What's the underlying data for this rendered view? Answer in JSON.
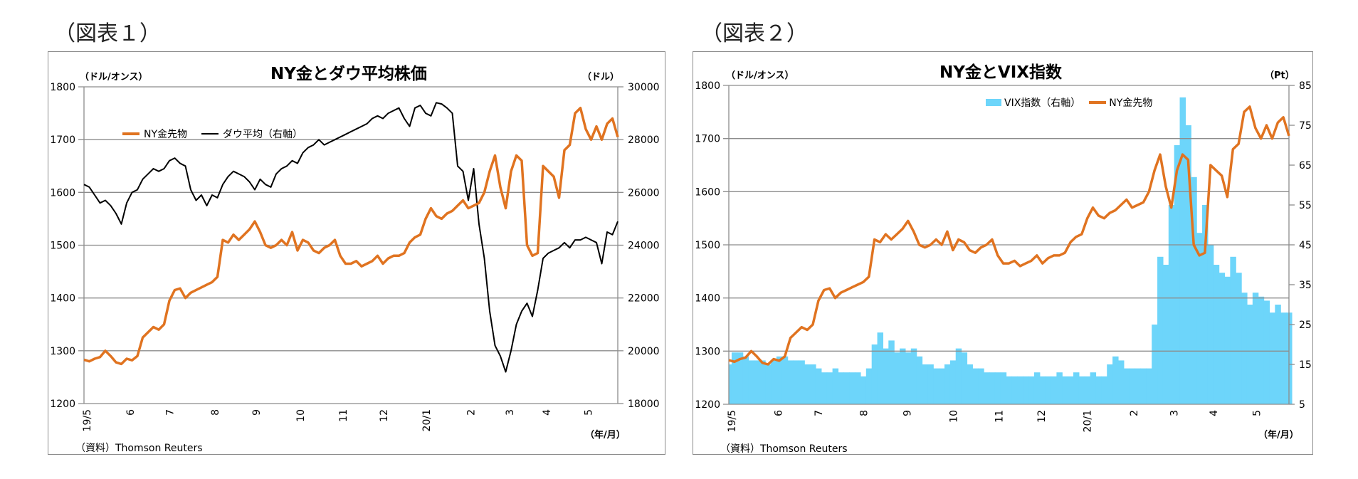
{
  "figures": [
    {
      "label": "（図表１）",
      "title": "NY金とダウ平均株価",
      "left_unit": "（ドル/オンス）",
      "right_unit": "（ドル）",
      "x_unit": "（年/月）",
      "source": "（資料）Thomson Reuters",
      "legend": [
        "NY金先物",
        "ダウ平均（右軸）"
      ]
    },
    {
      "label": "（図表２）",
      "title": "NY金とVIX指数",
      "left_unit": "（ドル/オンス）",
      "right_unit": "（Pt）",
      "x_unit": "（年/月）",
      "source": "（資料）Thomson Reuters",
      "legend": [
        "VIX指数（右軸）",
        "NY金先物"
      ]
    }
  ],
  "colors": {
    "gold": "#E07320",
    "dow": "#000000",
    "vix": "#6DD5FA",
    "grid": "#8c8c8c"
  },
  "chart_data": [
    {
      "type": "line",
      "title": "NY金とダウ平均株価",
      "xlabel": "（年/月）",
      "ylabel": "（ドル/オンス）",
      "y2label": "（ドル）",
      "categories": [
        "19/5",
        "6",
        "7",
        "8",
        "9",
        "10",
        "11",
        "12",
        "20/1",
        "2",
        "3",
        "4",
        "5"
      ],
      "category_pos": [
        0,
        0.081,
        0.155,
        0.24,
        0.317,
        0.4,
        0.48,
        0.556,
        0.636,
        0.719,
        0.792,
        0.861,
        0.939
      ],
      "ylim": [
        1200,
        1800
      ],
      "yticks": [
        1200,
        1300,
        1400,
        1500,
        1600,
        1700,
        1800
      ],
      "y2lim": [
        18000,
        30000
      ],
      "y2ticks": [
        18000,
        20000,
        22000,
        24000,
        26000,
        28000,
        30000
      ],
      "grid": true,
      "legend_position": "upper-left",
      "series": [
        {
          "name": "NY金先物",
          "axis": "left",
          "color": "#E07320",
          "x": [
            0,
            0.01,
            0.02,
            0.03,
            0.04,
            0.05,
            0.06,
            0.07,
            0.08,
            0.09,
            0.1,
            0.11,
            0.12,
            0.13,
            0.14,
            0.15,
            0.16,
            0.17,
            0.18,
            0.19,
            0.2,
            0.21,
            0.22,
            0.23,
            0.24,
            0.25,
            0.26,
            0.27,
            0.28,
            0.29,
            0.3,
            0.31,
            0.32,
            0.33,
            0.34,
            0.35,
            0.36,
            0.37,
            0.38,
            0.39,
            0.4,
            0.41,
            0.42,
            0.43,
            0.44,
            0.45,
            0.46,
            0.47,
            0.48,
            0.49,
            0.5,
            0.51,
            0.52,
            0.53,
            0.54,
            0.55,
            0.56,
            0.57,
            0.58,
            0.59,
            0.6,
            0.61,
            0.62,
            0.63,
            0.64,
            0.65,
            0.66,
            0.67,
            0.68,
            0.69,
            0.7,
            0.71,
            0.72,
            0.73,
            0.74,
            0.75,
            0.76,
            0.77,
            0.78,
            0.79,
            0.8,
            0.81,
            0.82,
            0.83,
            0.84,
            0.85,
            0.86,
            0.87,
            0.88,
            0.89,
            0.9,
            0.91,
            0.92,
            0.93,
            0.94,
            0.95,
            0.96,
            0.97,
            0.98,
            0.99,
            1
          ],
          "values": [
            1283,
            1280,
            1285,
            1288,
            1300,
            1290,
            1278,
            1275,
            1285,
            1282,
            1290,
            1325,
            1335,
            1345,
            1340,
            1350,
            1395,
            1415,
            1418,
            1400,
            1410,
            1415,
            1420,
            1425,
            1430,
            1440,
            1510,
            1505,
            1520,
            1510,
            1520,
            1530,
            1545,
            1525,
            1500,
            1495,
            1500,
            1510,
            1500,
            1525,
            1490,
            1510,
            1505,
            1490,
            1485,
            1495,
            1500,
            1510,
            1480,
            1465,
            1465,
            1470,
            1460,
            1465,
            1470,
            1480,
            1465,
            1475,
            1480,
            1480,
            1485,
            1505,
            1515,
            1520,
            1550,
            1570,
            1555,
            1550,
            1560,
            1565,
            1575,
            1585,
            1570,
            1575,
            1580,
            1600,
            1640,
            1670,
            1610,
            1570,
            1640,
            1670,
            1660,
            1500,
            1480,
            1485,
            1650,
            1640,
            1630,
            1590,
            1680,
            1690,
            1750,
            1760,
            1720,
            1700,
            1725,
            1700,
            1730,
            1740,
            1705
          ]
        },
        {
          "name": "ダウ平均（右軸）",
          "axis": "right",
          "color": "#000000",
          "x": [
            0,
            0.01,
            0.02,
            0.03,
            0.04,
            0.05,
            0.06,
            0.07,
            0.08,
            0.09,
            0.1,
            0.11,
            0.12,
            0.13,
            0.14,
            0.15,
            0.16,
            0.17,
            0.18,
            0.19,
            0.2,
            0.21,
            0.22,
            0.23,
            0.24,
            0.25,
            0.26,
            0.27,
            0.28,
            0.29,
            0.3,
            0.31,
            0.32,
            0.33,
            0.34,
            0.35,
            0.36,
            0.37,
            0.38,
            0.39,
            0.4,
            0.41,
            0.42,
            0.43,
            0.44,
            0.45,
            0.46,
            0.47,
            0.48,
            0.49,
            0.5,
            0.51,
            0.52,
            0.53,
            0.54,
            0.55,
            0.56,
            0.57,
            0.58,
            0.59,
            0.6,
            0.61,
            0.62,
            0.63,
            0.64,
            0.65,
            0.66,
            0.67,
            0.68,
            0.69,
            0.7,
            0.71,
            0.72,
            0.73,
            0.74,
            0.75,
            0.76,
            0.77,
            0.78,
            0.79,
            0.8,
            0.81,
            0.82,
            0.83,
            0.84,
            0.85,
            0.86,
            0.87,
            0.88,
            0.89,
            0.9,
            0.91,
            0.92,
            0.93,
            0.94,
            0.95,
            0.96,
            0.97,
            0.98,
            0.99,
            1
          ],
          "values": [
            26300,
            26200,
            25900,
            25600,
            25700,
            25500,
            25200,
            24800,
            25600,
            26000,
            26100,
            26500,
            26700,
            26900,
            26800,
            26900,
            27200,
            27300,
            27100,
            27000,
            26100,
            25700,
            25900,
            25500,
            25900,
            25800,
            26300,
            26600,
            26800,
            26700,
            26600,
            26400,
            26100,
            26500,
            26300,
            26200,
            26700,
            26900,
            27000,
            27200,
            27100,
            27500,
            27700,
            27800,
            28000,
            27800,
            27900,
            28000,
            28100,
            28200,
            28300,
            28400,
            28500,
            28600,
            28800,
            28900,
            28800,
            29000,
            29100,
            29200,
            28800,
            28500,
            29200,
            29300,
            29000,
            28900,
            29400,
            29350,
            29200,
            29000,
            27000,
            26800,
            25700,
            26900,
            24800,
            23500,
            21500,
            20200,
            19800,
            19200,
            20000,
            21000,
            21500,
            21800,
            21300,
            22300,
            23500,
            23700,
            23800,
            23900,
            24100,
            23900,
            24200,
            24200,
            24300,
            24200,
            24100,
            23300,
            24500,
            24400,
            24900
          ]
        }
      ]
    },
    {
      "type": "bar+line",
      "title": "NY金とVIX指数",
      "xlabel": "（年/月）",
      "ylabel": "（ドル/オンス）",
      "y2label": "（Pt）",
      "categories": [
        "19/5",
        "6",
        "7",
        "8",
        "9",
        "10",
        "11",
        "12",
        "20/1",
        "2",
        "3",
        "4",
        "5"
      ],
      "category_pos": [
        0,
        0.083,
        0.155,
        0.236,
        0.313,
        0.396,
        0.477,
        0.553,
        0.635,
        0.718,
        0.79,
        0.86,
        0.937
      ],
      "ylim": [
        1200,
        1800
      ],
      "yticks": [
        1200,
        1300,
        1400,
        1500,
        1600,
        1700,
        1800
      ],
      "y2lim": [
        5,
        85
      ],
      "y2ticks": [
        5,
        15,
        25,
        35,
        45,
        55,
        65,
        75,
        85
      ],
      "grid": true,
      "legend_position": "upper-center",
      "series": [
        {
          "name": "VIX指数（右軸）",
          "axis": "right",
          "type": "bar",
          "color": "#6DD5FA",
          "x": [
            0,
            0.01,
            0.02,
            0.03,
            0.04,
            0.05,
            0.06,
            0.07,
            0.08,
            0.09,
            0.1,
            0.11,
            0.12,
            0.13,
            0.14,
            0.15,
            0.16,
            0.17,
            0.18,
            0.19,
            0.2,
            0.21,
            0.22,
            0.23,
            0.24,
            0.25,
            0.26,
            0.27,
            0.28,
            0.29,
            0.3,
            0.31,
            0.32,
            0.33,
            0.34,
            0.35,
            0.36,
            0.37,
            0.38,
            0.39,
            0.4,
            0.41,
            0.42,
            0.43,
            0.44,
            0.45,
            0.46,
            0.47,
            0.48,
            0.49,
            0.5,
            0.51,
            0.52,
            0.53,
            0.54,
            0.55,
            0.56,
            0.57,
            0.58,
            0.59,
            0.6,
            0.61,
            0.62,
            0.63,
            0.64,
            0.65,
            0.66,
            0.67,
            0.68,
            0.69,
            0.7,
            0.71,
            0.72,
            0.73,
            0.74,
            0.75,
            0.76,
            0.77,
            0.78,
            0.79,
            0.8,
            0.81,
            0.82,
            0.83,
            0.84,
            0.85,
            0.86,
            0.87,
            0.88,
            0.89,
            0.9,
            0.91,
            0.92,
            0.93,
            0.94,
            0.95,
            0.96,
            0.97,
            0.98,
            0.99,
            1
          ],
          "values": [
            15,
            18,
            18,
            17,
            16,
            16,
            16,
            15,
            16,
            17,
            17,
            16,
            16,
            16,
            15,
            15,
            14,
            13,
            13,
            14,
            13,
            13,
            13,
            13,
            12,
            14,
            20,
            23,
            19,
            21,
            18,
            19,
            18,
            19,
            17,
            15,
            15,
            14,
            14,
            15,
            16,
            19,
            18,
            15,
            14,
            14,
            13,
            13,
            13,
            13,
            12,
            12,
            12,
            12,
            12,
            13,
            12,
            12,
            12,
            13,
            12,
            12,
            13,
            12,
            12,
            13,
            12,
            12,
            15,
            17,
            16,
            14,
            14,
            14,
            14,
            14,
            25,
            42,
            40,
            55,
            70,
            82,
            75,
            62,
            48,
            55,
            45,
            40,
            38,
            37,
            42,
            38,
            33,
            30,
            33,
            32,
            31,
            28,
            30,
            28,
            28
          ]
        },
        {
          "name": "NY金先物",
          "axis": "left",
          "type": "line",
          "color": "#E07320",
          "same_as": "figure1.NY金先物"
        }
      ]
    }
  ]
}
